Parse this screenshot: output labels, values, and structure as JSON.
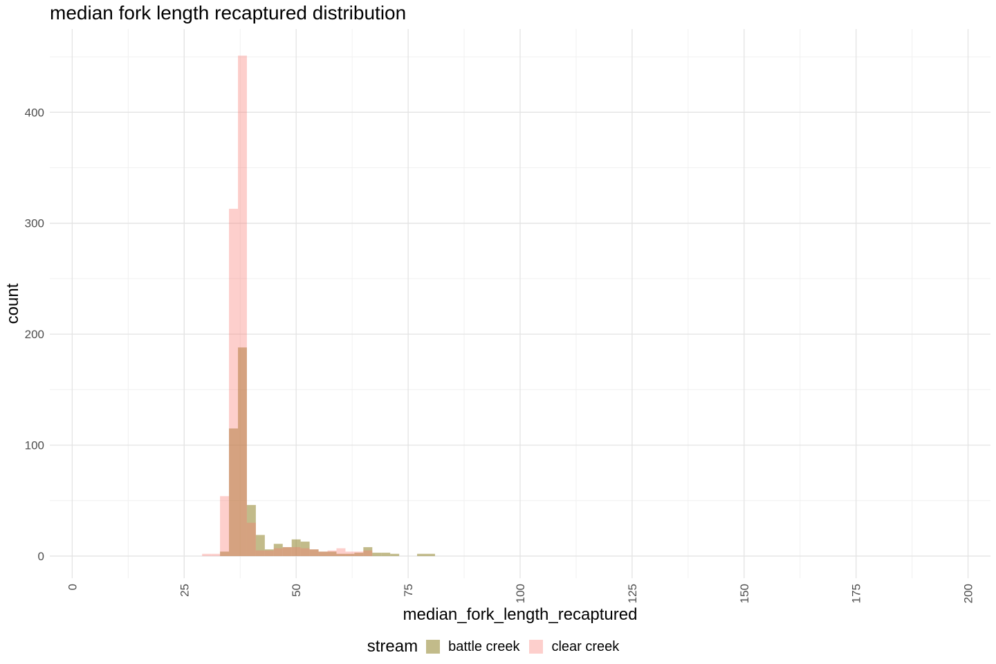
{
  "chart_data": {
    "type": "bar",
    "title": "median fork length recaptured distribution",
    "xlabel": "median_fork_length_recaptured",
    "ylabel": "count",
    "xlim": [
      -5,
      205
    ],
    "ylim": [
      -20,
      475
    ],
    "x_ticks": [
      0,
      25,
      50,
      75,
      100,
      125,
      150,
      175,
      200
    ],
    "y_ticks": [
      0,
      100,
      200,
      300,
      400
    ],
    "bin_width": 2,
    "legend_title": "stream",
    "legend_position": "bottom",
    "grid": true,
    "series": [
      {
        "name": "battle creek",
        "color": "#8f8329",
        "opacity": 0.55,
        "x": [
          34,
          36,
          38,
          40,
          42,
          44,
          46,
          48,
          50,
          52,
          54,
          56,
          58,
          60,
          62,
          64,
          66,
          68,
          70,
          72,
          74,
          76,
          78,
          80
        ],
        "values": [
          4,
          115,
          188,
          46,
          19,
          6,
          11,
          8,
          15,
          13,
          6,
          4,
          4,
          2,
          2,
          3,
          8,
          3,
          3,
          2,
          0,
          0,
          2,
          2
        ]
      },
      {
        "name": "clear creek",
        "color": "#f8766d",
        "opacity": 0.35,
        "x": [
          30,
          32,
          34,
          36,
          38,
          40,
          42,
          44,
          46,
          48,
          50,
          52,
          54,
          56,
          58,
          60,
          62,
          64,
          66
        ],
        "values": [
          2,
          2,
          54,
          313,
          451,
          30,
          5,
          5,
          7,
          8,
          8,
          7,
          6,
          4,
          5,
          7,
          4,
          4,
          5
        ]
      }
    ]
  }
}
